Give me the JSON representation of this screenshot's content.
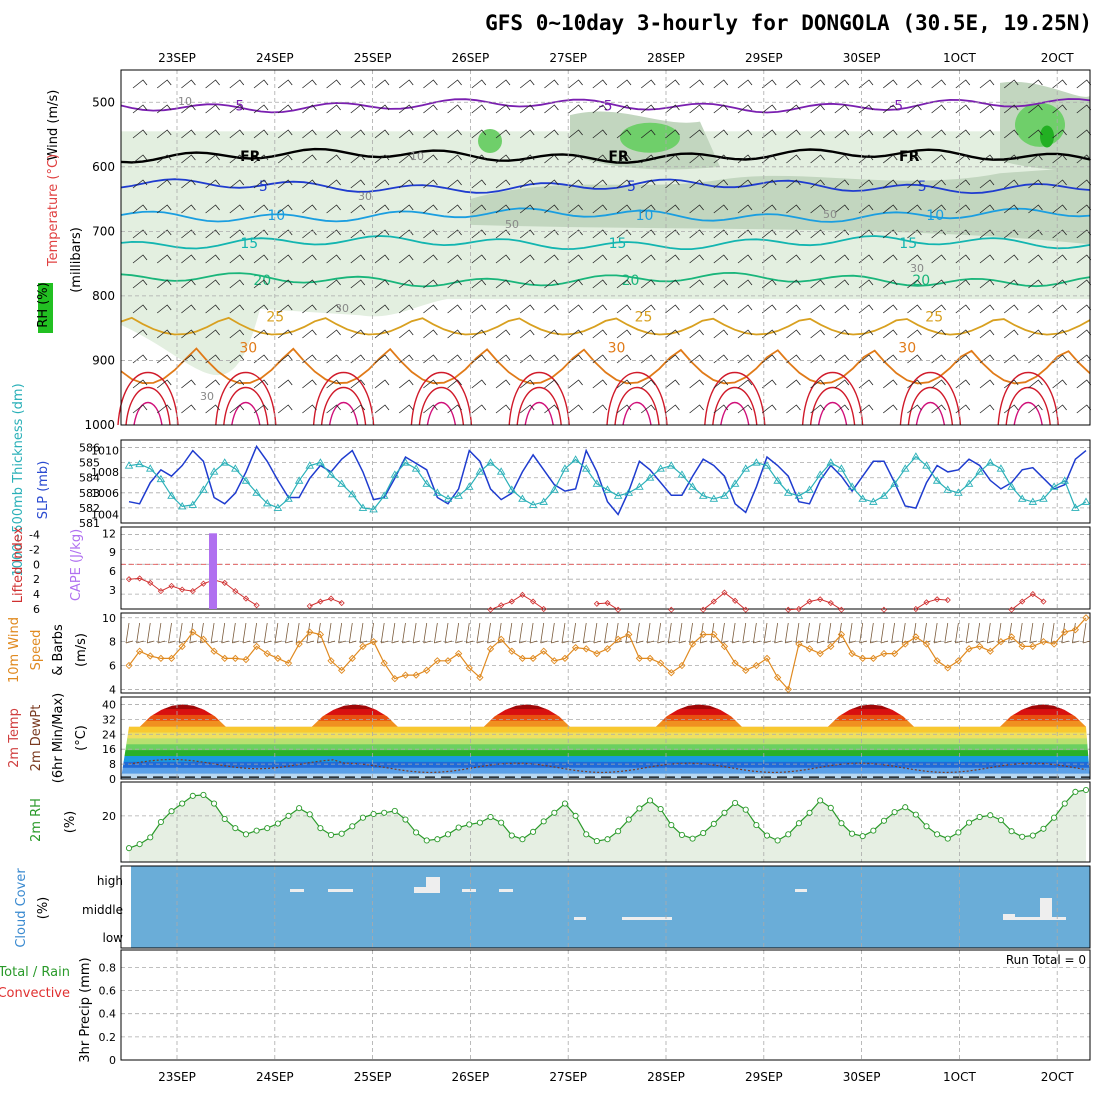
{
  "title": "GFS 0~10day 3-hourly for DONGOLA (30.5E, 19.25N)",
  "date_ticks": [
    "23SEP",
    "24SEP",
    "25SEP",
    "26SEP",
    "27SEP",
    "28SEP",
    "29SEP",
    "30SEP",
    "1OCT",
    "2OCT"
  ],
  "colors": {
    "rh_light": "#e3efe0",
    "rh_mid": "#c2d6bf",
    "rh_dark": "#a9bca6",
    "rh_green": "#6fcf6a",
    "temp_m5": "#7a1fb0",
    "temp_fr": "#000000",
    "temp_5": "#1f3ccf",
    "temp_10": "#1a9ee0",
    "temp_15": "#13b5b0",
    "temp_20": "#19b57a",
    "temp_25": "#d8a020",
    "temp_30": "#e07a18",
    "temp_35": "#d01a2a",
    "slp": "#1f3ccf",
    "thick": "#2ab0b8",
    "li": "#d03030",
    "cape": "#b070f0",
    "wind10": "#e08a20",
    "rh2m": "#2a9a2a",
    "cloud": "#6aadd8",
    "precip_total": "#2a9a2a",
    "precip_conv": "#e03030"
  },
  "chart_data": [
    {
      "name": "upper-air",
      "type": "heatmap",
      "ylabel_parts": [
        "Wind (m/s)",
        "Temperature (°C)",
        "RH (%)"
      ],
      "yunit": "(millibars)",
      "yticks": [
        "500",
        "600",
        "700",
        "800",
        "900",
        "1000"
      ],
      "isotherms": [
        {
          "label": "-5",
          "pressure": 505
        },
        {
          "label": "FR",
          "pressure": 583
        },
        {
          "label": "5",
          "pressure": 630
        },
        {
          "label": "10",
          "pressure": 675
        },
        {
          "label": "15",
          "pressure": 718
        },
        {
          "label": "20",
          "pressure": 775
        },
        {
          "label": "25",
          "pressure": 832
        },
        {
          "label": "30",
          "pressure": 880
        }
      ],
      "rh_labels": [
        "10",
        "10",
        "30",
        "50",
        "50",
        "30",
        "30",
        "30"
      ]
    },
    {
      "name": "pressure-thickness",
      "type": "line",
      "ylabel_left": "1000~500mb Thickness (dm)",
      "ylabel_right": "SLP (mb)",
      "yticks_left": [
        "586",
        "585",
        "584",
        "583",
        "582",
        "581"
      ],
      "yticks_right": [
        "1010",
        "1008",
        "1006",
        "1004"
      ],
      "series": [
        {
          "name": "SLP (mb)",
          "values": [
            1005.2,
            1005.0,
            1007.0,
            1008.2,
            1007.6,
            1008.6,
            1010.0,
            1009.0,
            1005.6,
            1005.0,
            1006.0,
            1008.0,
            1010.4,
            1009.0,
            1007.2,
            1005.6,
            1005.6,
            1007.4,
            1008.6,
            1008.0,
            1009.2,
            1010.0,
            1008.0,
            1005.4,
            1005.6,
            1007.4,
            1009.4,
            1008.8,
            1008.2,
            1005.6,
            1005.0,
            1006.4,
            1010.0,
            1009.0,
            1006.4,
            1005.4,
            1006.0,
            1008.0,
            1009.6,
            1008.2,
            1006.8,
            1006.2,
            1006.4,
            1010.0,
            1008.0,
            1005.2,
            1004.0,
            1006.2,
            1009.0,
            1008.2,
            1007.0,
            1005.8,
            1005.8,
            1007.6,
            1009.2,
            1008.6,
            1007.6,
            1005.0,
            1004.2,
            1006.6,
            1009.4,
            1008.6,
            1007.6,
            1005.2,
            1005.0,
            1007.2,
            1008.6,
            1007.6,
            1006.2,
            1007.6,
            1009.0,
            1009.0,
            1007.0,
            1004.8,
            1004.6,
            1007.0,
            1008.6,
            1008.0,
            1008.2,
            1009.2,
            1008.6,
            1007.2,
            1006.4,
            1007.0,
            1008.2,
            1008.4,
            1007.4,
            1006.4,
            1006.8,
            1009.2,
            1010.0
          ]
        },
        {
          "name": "Thickness (dm)",
          "values": [
            584.8,
            584.9,
            584.6,
            583.9,
            582.8,
            582.1,
            582.2,
            583.2,
            584.4,
            585.0,
            584.6,
            583.8,
            583.0,
            582.3,
            582.0,
            582.6,
            583.8,
            584.8,
            585.0,
            584.2,
            583.6,
            582.9,
            582.0,
            581.9,
            582.8,
            584.2,
            585.0,
            584.6,
            583.6,
            583.0,
            582.6,
            582.8,
            583.4,
            584.4,
            585.0,
            584.4,
            583.2,
            582.6,
            582.2,
            582.4,
            583.2,
            584.6,
            585.2,
            584.6,
            583.6,
            583.2,
            582.8,
            583.0,
            583.4,
            584.0,
            584.6,
            584.8,
            584.2,
            583.4,
            582.8,
            582.6,
            582.8,
            583.6,
            584.6,
            585.0,
            584.8,
            583.8,
            583.0,
            582.8,
            583.2,
            584.2,
            585.0,
            584.6,
            583.4,
            582.6,
            582.4,
            582.8,
            583.6,
            584.6,
            585.4,
            584.8,
            583.8,
            583.2,
            583.0,
            583.6,
            584.4,
            585.0,
            584.6,
            583.4,
            582.6,
            582.4,
            582.6,
            583.4,
            583.8,
            582.0,
            582.4
          ]
        }
      ]
    },
    {
      "name": "stability",
      "type": "line",
      "ylabel_left": "Lifted Index",
      "ylabel_right": "CAPE (J/kg)",
      "yticks_left": [
        "-4",
        "-2",
        "0",
        "2",
        "4",
        "6"
      ],
      "yticks_right": [
        "12",
        "9",
        "6",
        "3"
      ],
      "series": [
        {
          "name": "Lifted Index",
          "values": [
            2.0,
            1.9,
            2.5,
            3.6,
            2.9,
            3.4,
            3.6,
            2.6,
            2.1,
            2.5,
            3.6,
            4.6,
            5.5,
            6.3,
            6.5,
            6.4,
            6.2,
            5.6,
            5.0,
            4.6,
            5.2,
            6.3,
            6.4,
            6.5,
            6.4,
            6.3,
            6.2,
            6.4,
            6.4,
            6.3,
            6.2,
            6.3,
            6.4,
            6.3,
            6.1,
            5.5,
            5.0,
            4.1,
            5.0,
            6.0,
            6.4,
            6.4,
            6.3,
            6.2,
            5.3,
            5.2,
            6.1,
            6.4,
            6.4,
            6.3,
            6.2,
            6.1,
            6.3,
            6.4,
            6.1,
            5.0,
            3.8,
            4.9,
            6.1,
            6.4,
            6.3,
            6.2,
            6.1,
            6.0,
            5.0,
            4.7,
            5.2,
            6.1,
            6.4,
            6.3,
            6.2,
            6.1,
            6.2,
            6.3,
            6.0,
            5.1,
            4.7,
            4.8,
            6.2,
            6.4,
            6.3,
            6.2,
            6.3,
            6.1,
            5.0,
            4.0,
            5.0,
            6.2,
            6.4,
            6.3,
            6.2
          ]
        },
        {
          "name": "CAPE (J/kg)",
          "values": [
            12.0
          ]
        }
      ]
    },
    {
      "name": "wind-10m",
      "type": "line",
      "ylabel": "10m Wind Speed & Barbs (m/s)",
      "yticks": [
        "10",
        "8",
        "6",
        "4"
      ],
      "series": [
        {
          "name": "10m Wind Speed",
          "values": [
            6.0,
            7.2,
            6.8,
            6.6,
            6.6,
            7.6,
            8.8,
            8.2,
            7.2,
            6.6,
            6.6,
            6.5,
            7.6,
            7.0,
            6.6,
            6.2,
            7.8,
            8.8,
            8.6,
            6.4,
            5.6,
            6.6,
            7.6,
            8.0,
            6.2,
            4.9,
            5.2,
            5.2,
            5.6,
            6.4,
            6.4,
            7.0,
            5.8,
            5.0,
            7.4,
            8.2,
            7.2,
            6.6,
            6.6,
            7.2,
            6.4,
            6.6,
            7.5,
            7.4,
            7.0,
            7.4,
            8.2,
            8.6,
            6.6,
            6.6,
            6.2,
            5.4,
            6.0,
            7.8,
            8.6,
            8.6,
            7.6,
            6.2,
            5.6,
            6.0,
            6.6,
            5.0,
            4.0,
            7.8,
            7.4,
            7.0,
            7.6,
            8.6,
            7.0,
            6.6,
            6.6,
            7.0,
            7.0,
            7.8,
            8.4,
            7.8,
            6.4,
            5.8,
            6.4,
            7.4,
            7.6,
            7.2,
            8.0,
            8.4,
            7.6,
            7.6,
            8.0,
            7.8,
            8.8,
            9.0,
            10.0
          ]
        }
      ]
    },
    {
      "name": "temperature-2m",
      "type": "area",
      "ylabel": "2m Temp 2m DewPt (6hr Min/Max) (°C)",
      "yticks": [
        "40",
        "32",
        "24",
        "16",
        "8",
        "0"
      ],
      "color_bands": [
        "#b9d8f0",
        "#5aa0e8",
        "#1f6ad8",
        "#1a9ae0",
        "#2ab02a",
        "#6ad060",
        "#b8e070",
        "#f0e060",
        "#f8c830",
        "#f09020",
        "#e85010",
        "#d81010",
        "#a00808",
        "#6a4030"
      ]
    },
    {
      "name": "rh-2m",
      "type": "line",
      "ylabel": "2m RH (%)",
      "yticks": [
        "20"
      ],
      "series": [
        {
          "name": "2m RH",
          "values": [
            9.5,
            10.8,
            13.0,
            18.0,
            21.5,
            24.0,
            26.5,
            26.8,
            24.0,
            19.0,
            16.0,
            14.0,
            15.2,
            16.0,
            17.5,
            20.0,
            22.5,
            20.5,
            16.0,
            13.8,
            14.2,
            16.6,
            19.4,
            20.6,
            21.0,
            21.6,
            18.8,
            14.6,
            12.0,
            12.4,
            14.0,
            16.2,
            17.2,
            17.8,
            19.6,
            17.8,
            13.6,
            12.4,
            14.8,
            18.2,
            21.0,
            24.0,
            20.0,
            14.0,
            11.8,
            12.4,
            15.0,
            18.8,
            22.4,
            25.0,
            22.2,
            17.0,
            13.8,
            12.6,
            14.4,
            17.4,
            21.0,
            24.2,
            22.0,
            17.0,
            13.6,
            12.0,
            14.0,
            17.6,
            21.0,
            25.0,
            22.6,
            17.6,
            14.2,
            13.4,
            15.2,
            18.4,
            21.2,
            22.8,
            20.4,
            16.6,
            14.0,
            12.6,
            14.6,
            17.8,
            19.6,
            20.2,
            18.6,
            15.0,
            13.2,
            13.6,
            15.8,
            19.4,
            24.0,
            27.8,
            28.4
          ]
        }
      ]
    },
    {
      "name": "cloud-cover",
      "type": "bar",
      "ylabel": "Cloud Cover (%)",
      "yticks": [
        "high",
        "middle",
        "low"
      ]
    },
    {
      "name": "precip",
      "type": "bar",
      "ylabel_left_parts": [
        "Total / Rain",
        "Convective"
      ],
      "ylabel": "3hr Precip (mm)",
      "yticks": [
        "0.8",
        "0.6",
        "0.4",
        "0.2",
        "0"
      ],
      "run_total": "Run Total = 0",
      "values": [
        0
      ]
    }
  ]
}
